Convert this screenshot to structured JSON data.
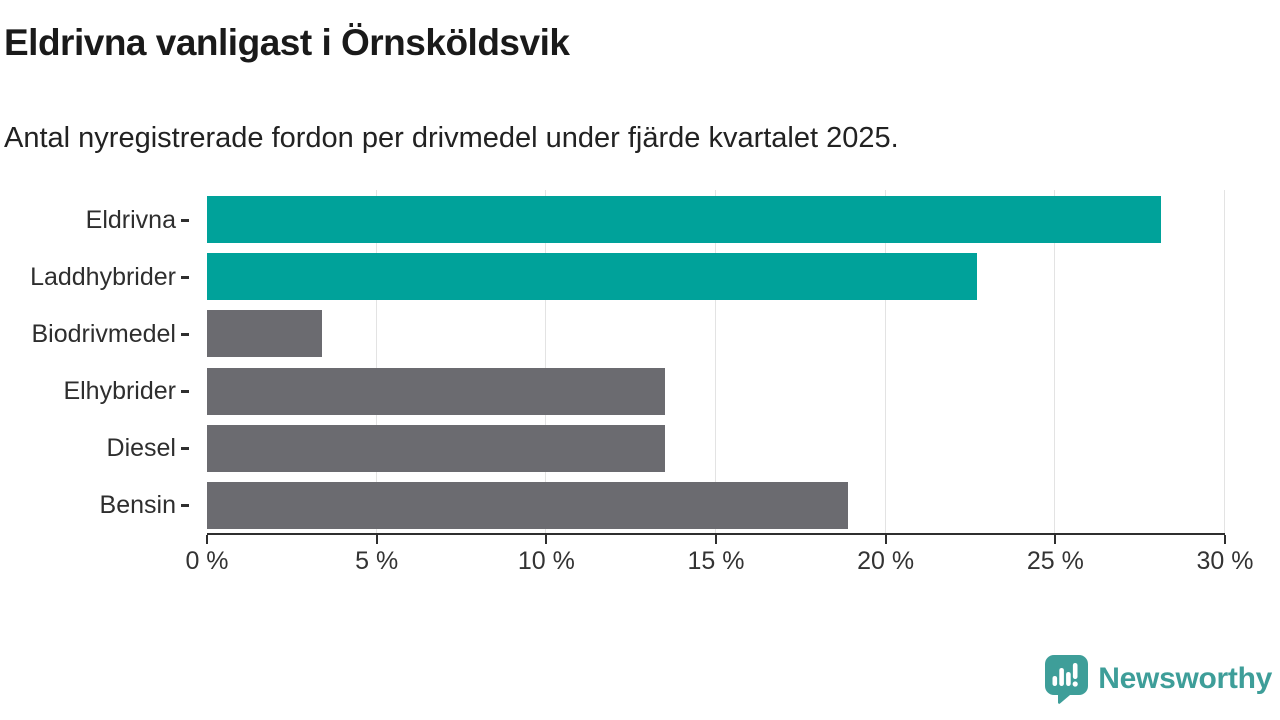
{
  "header": {
    "title": "Eldrivna vanligast i Örnsköldsvik",
    "subtitle": "Antal nyregistrerade fordon per drivmedel under fjärde kvartalet 2025."
  },
  "chart_data": {
    "type": "bar",
    "orientation": "horizontal",
    "title": "Eldrivna vanligast i Örnsköldsvik",
    "subtitle": "Antal nyregistrerade fordon per drivmedel under fjärde kvartalet 2025.",
    "categories": [
      "Eldrivna",
      "Laddhybrider",
      "Biodrivmedel",
      "Elhybrider",
      "Diesel",
      "Bensin"
    ],
    "values": [
      28.1,
      22.7,
      3.4,
      13.5,
      13.5,
      18.9
    ],
    "unit": "%",
    "bar_colors": [
      "#00a29a",
      "#00a29a",
      "#6b6b70",
      "#6b6b70",
      "#6b6b70",
      "#6b6b70"
    ],
    "highlight_color": "#00a29a",
    "default_color": "#6b6b70",
    "xlabel": "",
    "ylabel": "",
    "xlim": [
      0,
      30
    ],
    "x_ticks": [
      0,
      5,
      10,
      15,
      20,
      25,
      30
    ],
    "x_tick_labels": [
      "0 %",
      "5 %",
      "10 %",
      "15 %",
      "20 %",
      "25 %",
      "30 %"
    ],
    "grid": "vertical-only",
    "legend": "none"
  },
  "footer": {
    "brand": "Newsworthy",
    "brand_color": "#3e9e99"
  }
}
